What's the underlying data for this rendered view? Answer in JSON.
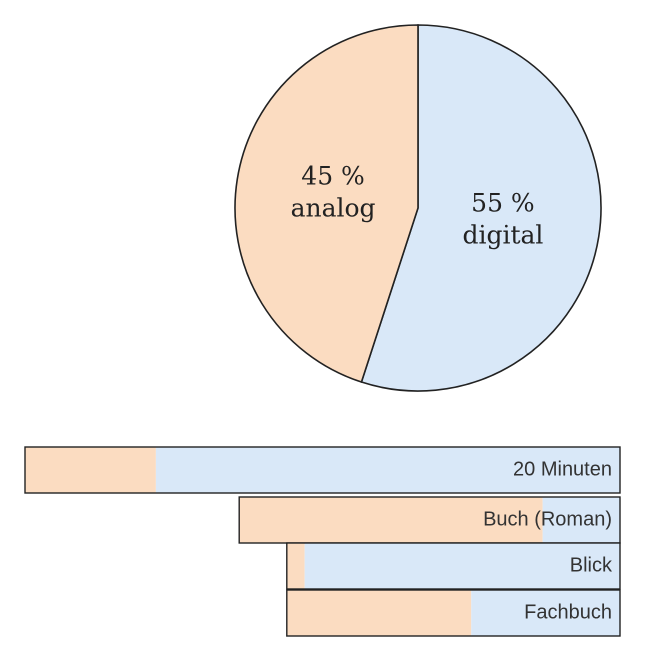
{
  "chart_data": [
    {
      "type": "pie",
      "categories": [
        "analog",
        "digital"
      ],
      "values": [
        45,
        55
      ],
      "value_labels": [
        "45 %",
        "55 %"
      ],
      "colors": [
        "#fbdcc1",
        "#d9e8f8"
      ]
    },
    {
      "type": "stacked-bar",
      "orientation": "horizontal",
      "categories": [
        "20 Minuten",
        "Buch (Roman)",
        "Blick",
        "Fachbuch"
      ],
      "xlim": [
        0,
        100
      ],
      "series": [
        {
          "color": "#fbdcc1",
          "values": [
            22,
            51,
            3,
            31
          ]
        },
        {
          "color": "#d9e8f8",
          "values": [
            78,
            13,
            53,
            25
          ]
        }
      ]
    }
  ]
}
